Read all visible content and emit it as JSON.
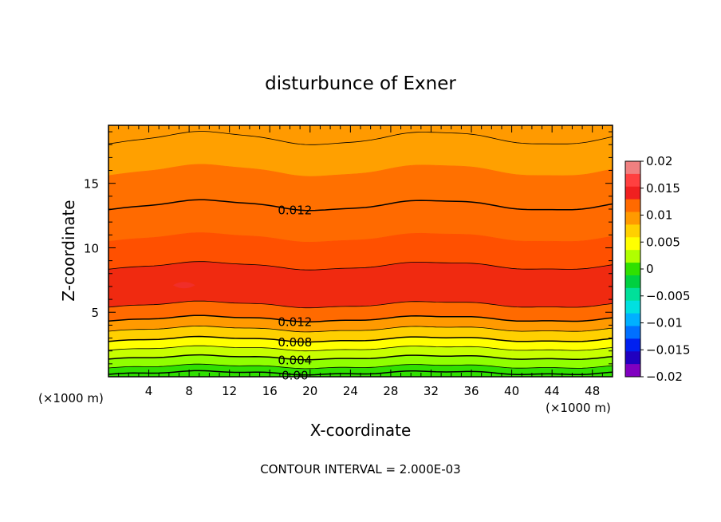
{
  "chart_data": {
    "type": "heatmap",
    "subtype": "filled-contour",
    "title": "disturbunce of Exner",
    "xlabel": "X-coordinate",
    "ylabel": "Z-coordinate",
    "x_unit": "(×1000 m)",
    "x_unit_right": "(×1000 m)",
    "footer": "CONTOUR INTERVAL = 2.000E-03",
    "xlim": [
      0,
      50
    ],
    "ylim": [
      0,
      19.5
    ],
    "x_ticks": [
      4,
      8,
      12,
      16,
      20,
      24,
      28,
      32,
      36,
      40,
      44,
      48
    ],
    "y_ticks": [
      5,
      10,
      15
    ],
    "colorbar": {
      "range": [
        -0.02,
        0.02
      ],
      "ticks": [
        0.02,
        0.015,
        0.01,
        0.005,
        0,
        -0.005,
        -0.01,
        -0.015,
        -0.02
      ],
      "tick_labels": [
        "0.02",
        "0.015",
        "0.01",
        "0.005",
        "0",
        "−0.005",
        "−0.01",
        "−0.015",
        "−0.02"
      ],
      "colors_top_to_bottom": [
        "#f08080",
        "#ff4040",
        "#f02020",
        "#ff6a00",
        "#ff9a00",
        "#ffd000",
        "#ffff00",
        "#b0ff00",
        "#30e000",
        "#00d040",
        "#00e09a",
        "#00e0e0",
        "#00b0ff",
        "#0070ff",
        "#0020f0",
        "#2000c0",
        "#8000c0"
      ]
    },
    "bands": [
      {
        "z_bottom": 18.5,
        "z_top": 19.5,
        "value": 0.011,
        "color": "#ff9a00"
      },
      {
        "z_bottom": 16.0,
        "z_top": 18.5,
        "value": 0.011,
        "color": "#ffa000"
      },
      {
        "z_bottom": 13.3,
        "z_top": 16.0,
        "value": 0.013,
        "color": "#ff7000"
      },
      {
        "z_bottom": 10.8,
        "z_top": 13.3,
        "value": 0.013,
        "color": "#ff6a00"
      },
      {
        "z_bottom": 8.6,
        "z_top": 10.8,
        "value": 0.014,
        "color": "#ff5000"
      },
      {
        "z_bottom": 5.6,
        "z_top": 8.6,
        "value": 0.015,
        "color": "#f02a10"
      },
      {
        "z_bottom": 4.5,
        "z_top": 5.6,
        "value": 0.013,
        "color": "#ff6a00"
      },
      {
        "z_bottom": 3.7,
        "z_top": 4.5,
        "value": 0.011,
        "color": "#ff9a00"
      },
      {
        "z_bottom": 2.9,
        "z_top": 3.7,
        "value": 0.009,
        "color": "#ffd000"
      },
      {
        "z_bottom": 2.2,
        "z_top": 2.9,
        "value": 0.007,
        "color": "#ffff00"
      },
      {
        "z_bottom": 1.5,
        "z_top": 2.2,
        "value": 0.005,
        "color": "#c8ff00"
      },
      {
        "z_bottom": 0.8,
        "z_top": 1.5,
        "value": 0.003,
        "color": "#90ff00"
      },
      {
        "z_bottom": 0.0,
        "z_top": 0.8,
        "value": 0.001,
        "color": "#30e000"
      }
    ],
    "contour_lines": [
      {
        "z": 18.5,
        "label": ""
      },
      {
        "z": 13.3,
        "label": "0.012"
      },
      {
        "z": 8.6,
        "label": ""
      },
      {
        "z": 5.6,
        "label": ""
      },
      {
        "z": 4.5,
        "label": "0.012"
      },
      {
        "z": 3.7,
        "label": ""
      },
      {
        "z": 2.9,
        "label": "0.008"
      },
      {
        "z": 2.2,
        "label": ""
      },
      {
        "z": 1.5,
        "label": "0.004"
      },
      {
        "z": 0.8,
        "label": ""
      },
      {
        "z": 0.3,
        "label": "0.00"
      }
    ]
  }
}
